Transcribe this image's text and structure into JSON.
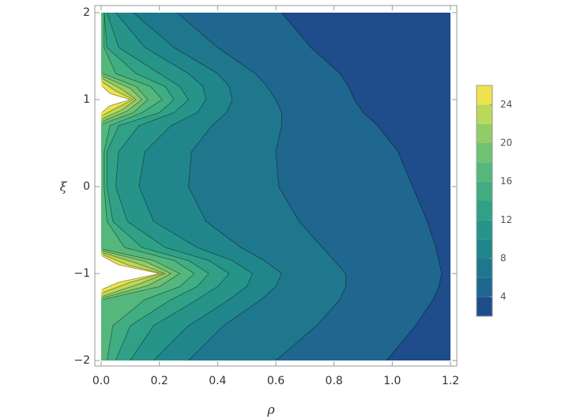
{
  "chart_data": {
    "type": "contour",
    "x_label": "ρ",
    "y_label": "ξ",
    "xlim": [
      0,
      1.2
    ],
    "ylim": [
      -2,
      2
    ],
    "xticks": [
      {
        "value": 0,
        "label": "0.0"
      },
      {
        "value": 0.2,
        "label": "0.2"
      },
      {
        "value": 0.4,
        "label": "0.4"
      },
      {
        "value": 0.6,
        "label": "0.6"
      },
      {
        "value": 0.8,
        "label": "0.8"
      },
      {
        "value": 1,
        "label": "1.0"
      },
      {
        "value": 1.2,
        "label": "1.2"
      }
    ],
    "yticks": [
      {
        "value": -2,
        "label": "−2"
      },
      {
        "value": -1,
        "label": "−1"
      },
      0,
      1,
      2
    ],
    "colors": [
      "#1f4c8a",
      "#1f678e",
      "#1f778d",
      "#21868b",
      "#27948a",
      "#30a187",
      "#40ad83",
      "#55b77c",
      "#70c273",
      "#92cc68",
      "#bad85a",
      "#eee24c"
    ],
    "colorbar": {
      "lim": [
        2,
        26
      ],
      "ticks": [
        4,
        8,
        12,
        16,
        20,
        24
      ]
    },
    "contours": [
      {
        "level": 4,
        "y": [
          2,
          1.6,
          1.3,
          1.15,
          1,
          0.85,
          0.7,
          0.4,
          0,
          -0.4,
          -0.7,
          -0.85,
          -1,
          -1.15,
          -1.3,
          -1.6,
          -2
        ],
        "x": [
          0.62,
          0.72,
          0.82,
          0.85,
          0.87,
          0.9,
          0.95,
          1.02,
          1.07,
          1.12,
          1.15,
          1.16,
          1.17,
          1.16,
          1.14,
          1.08,
          0.98
        ]
      },
      {
        "level": 6,
        "y": [
          2,
          1.6,
          1.3,
          1.15,
          1,
          0.85,
          0.7,
          0.4,
          0,
          -0.4,
          -0.7,
          -0.85,
          -1,
          -1.15,
          -1.3,
          -1.6,
          -2
        ],
        "x": [
          0.26,
          0.4,
          0.53,
          0.57,
          0.6,
          0.62,
          0.62,
          0.6,
          0.61,
          0.68,
          0.76,
          0.8,
          0.84,
          0.84,
          0.82,
          0.74,
          0.6
        ]
      },
      {
        "level": 8,
        "y": [
          2,
          1.6,
          1.3,
          1.15,
          1,
          0.85,
          0.7,
          0.4,
          0,
          -0.4,
          -0.7,
          -0.85,
          -1,
          -1.15,
          -1.3,
          -1.6,
          -2
        ],
        "x": [
          0.11,
          0.25,
          0.4,
          0.44,
          0.45,
          0.43,
          0.38,
          0.31,
          0.3,
          0.36,
          0.48,
          0.56,
          0.62,
          0.6,
          0.55,
          0.42,
          0.3
        ]
      },
      {
        "level": 10,
        "y": [
          2,
          1.6,
          1.3,
          1.15,
          1,
          0.85,
          0.7,
          0.4,
          0,
          -0.4,
          -0.7,
          -0.85,
          -1,
          -1.15,
          -1.3,
          -1.6,
          -2
        ],
        "x": [
          0.05,
          0.15,
          0.3,
          0.35,
          0.36,
          0.33,
          0.24,
          0.15,
          0.13,
          0.18,
          0.33,
          0.45,
          0.52,
          0.5,
          0.44,
          0.3,
          0.18
        ]
      },
      {
        "level": 12,
        "y": [
          2,
          1.6,
          1.3,
          1.15,
          1,
          0.85,
          0.7,
          0.4,
          0,
          -0.4,
          -0.7,
          -0.85,
          -1,
          -1.15,
          -1.3,
          -1.6,
          -2
        ],
        "x": [
          0.02,
          0.06,
          0.2,
          0.27,
          0.3,
          0.25,
          0.13,
          0.06,
          0.05,
          0.09,
          0.22,
          0.37,
          0.44,
          0.4,
          0.33,
          0.18,
          0.1
        ]
      },
      {
        "level": 14,
        "y": [
          2,
          1.6,
          1.3,
          1.15,
          1,
          0.85,
          0.7,
          0.4,
          0,
          -0.4,
          -0.7,
          -0.85,
          -1,
          -1.15,
          -1.3,
          -1.6,
          -2
        ],
        "x": [
          0.01,
          0.02,
          0.12,
          0.22,
          0.25,
          0.2,
          0.06,
          0.02,
          0.02,
          0.04,
          0.14,
          0.3,
          0.37,
          0.33,
          0.24,
          0.1,
          0.05
        ]
      },
      {
        "level": 16,
        "y": [
          2,
          1.6,
          1.3,
          1.15,
          1,
          0.85,
          0.7,
          0.4,
          0,
          -0.4,
          -0.7,
          -0.85,
          -1,
          -1.15,
          -1.3,
          -1.6,
          -2
        ],
        "x": [
          0.01,
          0.01,
          0.05,
          0.17,
          0.21,
          0.14,
          0.03,
          0.01,
          0.01,
          0.02,
          0.08,
          0.25,
          0.32,
          0.27,
          0.15,
          0.04,
          0.02
        ]
      },
      {
        "level": 18,
        "y": [
          1.3,
          1.15,
          1,
          0.85,
          0.72,
          null,
          -0.72,
          -0.85,
          -1,
          -1.15,
          -1.3
        ],
        "x": [
          0.005,
          0.12,
          0.16,
          0.11,
          0.005,
          null,
          0.005,
          0.18,
          0.27,
          0.2,
          0.005
        ]
      },
      {
        "level": 20,
        "y": [
          1.27,
          1.13,
          1,
          0.87,
          0.75,
          null,
          -0.74,
          -0.86,
          -1,
          -1.14,
          -1.28
        ],
        "x": [
          0.005,
          0.1,
          0.14,
          0.09,
          0.005,
          null,
          0.005,
          0.15,
          0.24,
          0.16,
          0.005
        ]
      },
      {
        "level": 22,
        "y": [
          1.24,
          1.12,
          1,
          0.88,
          0.78,
          null,
          -0.76,
          -0.88,
          -1,
          -1.12,
          -1.26
        ],
        "x": [
          0.005,
          0.07,
          0.12,
          0.07,
          0.005,
          null,
          0.005,
          0.12,
          0.22,
          0.13,
          0.005
        ]
      },
      {
        "level": 24,
        "y": [
          1.2,
          1.1,
          1,
          0.9,
          0.82,
          null,
          -0.78,
          -0.9,
          -1,
          -1.1,
          -1.22
        ],
        "x": [
          0.005,
          0.05,
          0.11,
          0.05,
          0.005,
          null,
          0.005,
          0.09,
          0.21,
          0.1,
          0.005
        ]
      },
      {
        "level": 26,
        "y": [
          1.15,
          1.07,
          1,
          0.93,
          0.86,
          null,
          -0.8,
          -0.9,
          -1,
          -1.1,
          -1.18
        ],
        "x": [
          0.005,
          0.03,
          0.1,
          0.03,
          0.005,
          null,
          0.005,
          0.06,
          0.2,
          0.06,
          0.005
        ]
      }
    ]
  }
}
